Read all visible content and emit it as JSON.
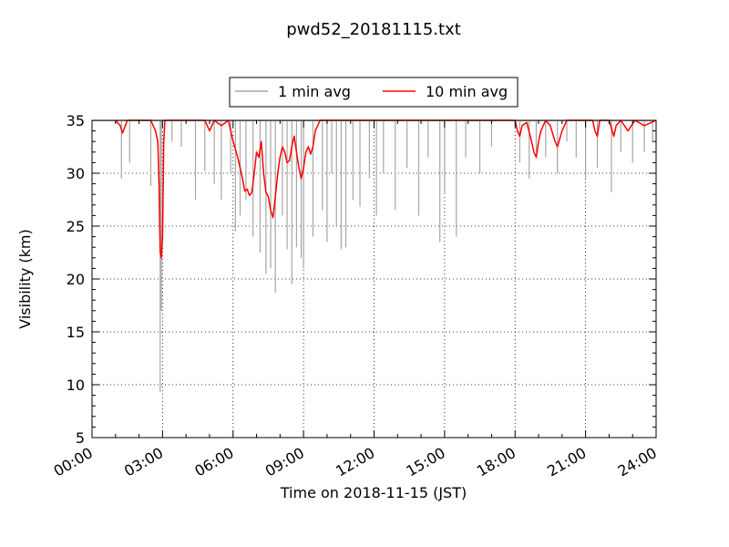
{
  "chart_data": {
    "type": "line",
    "title": "pwd52_20181115.txt",
    "xlabel": "Time on 2018-11-15 (JST)",
    "ylabel": "Visibility (km)",
    "xlim": [
      0,
      24
    ],
    "ylim": [
      5,
      35
    ],
    "x_tick_labels": [
      "00:00",
      "03:00",
      "06:00",
      "09:00",
      "12:00",
      "15:00",
      "18:00",
      "21:00",
      "24:00"
    ],
    "y_tick_labels": [
      "5",
      "10",
      "15",
      "20",
      "25",
      "30",
      "35"
    ],
    "grid": true,
    "legend_position": "top-center, above plot",
    "series": [
      {
        "name": "1 min avg",
        "color": "#a6a6a6",
        "x_unit": "hours",
        "dips": [
          [
            1.25,
            29.5
          ],
          [
            1.6,
            31
          ],
          [
            2.5,
            28.8
          ],
          [
            2.9,
            9.3
          ],
          [
            2.95,
            17
          ],
          [
            3.4,
            33
          ],
          [
            3.8,
            32.5
          ],
          [
            4.4,
            27.5
          ],
          [
            4.8,
            30.2
          ],
          [
            5.2,
            29
          ],
          [
            5.5,
            27.5
          ],
          [
            5.9,
            30
          ],
          [
            6.1,
            24.5
          ],
          [
            6.3,
            26
          ],
          [
            6.55,
            27.5
          ],
          [
            6.85,
            24
          ],
          [
            7.15,
            22.5
          ],
          [
            7.4,
            20.5
          ],
          [
            7.6,
            21
          ],
          [
            7.8,
            18.7
          ],
          [
            8.1,
            26
          ],
          [
            8.3,
            22.8
          ],
          [
            8.5,
            19.5
          ],
          [
            8.7,
            23
          ],
          [
            8.9,
            22
          ],
          [
            9.0,
            21
          ],
          [
            9.4,
            24
          ],
          [
            9.8,
            26.5
          ],
          [
            10.0,
            23.5
          ],
          [
            10.2,
            30
          ],
          [
            10.4,
            25
          ],
          [
            10.6,
            22.8
          ],
          [
            10.8,
            23
          ],
          [
            11.1,
            27.5
          ],
          [
            11.4,
            26.8
          ],
          [
            11.8,
            29.5
          ],
          [
            12.1,
            26
          ],
          [
            12.4,
            30
          ],
          [
            12.9,
            26.5
          ],
          [
            13.4,
            30.5
          ],
          [
            13.9,
            26
          ],
          [
            14.3,
            31.5
          ],
          [
            14.8,
            23.5
          ],
          [
            15.0,
            28
          ],
          [
            15.5,
            24
          ],
          [
            15.9,
            31.5
          ],
          [
            16.5,
            30
          ],
          [
            17.0,
            32.5
          ],
          [
            18.2,
            31
          ],
          [
            18.6,
            29.5
          ],
          [
            18.9,
            32
          ],
          [
            19.3,
            31.5
          ],
          [
            19.8,
            30
          ],
          [
            20.2,
            33
          ],
          [
            20.6,
            31.5
          ],
          [
            21.0,
            29.5
          ],
          [
            21.5,
            30.5
          ],
          [
            22.1,
            28.2
          ],
          [
            22.5,
            32
          ],
          [
            23.0,
            31
          ],
          [
            23.5,
            32
          ],
          [
            23.85,
            33
          ]
        ]
      },
      {
        "name": "10 min avg",
        "color": "#ff0000",
        "x_unit": "hours",
        "values": [
          [
            1.0,
            35
          ],
          [
            1.2,
            34.5
          ],
          [
            1.3,
            33.8
          ],
          [
            1.5,
            35
          ],
          [
            2.5,
            35
          ],
          [
            2.7,
            34
          ],
          [
            2.8,
            33
          ],
          [
            2.85,
            29
          ],
          [
            2.9,
            22.5
          ],
          [
            2.95,
            22
          ],
          [
            3.0,
            24
          ],
          [
            3.05,
            33
          ],
          [
            3.1,
            35
          ],
          [
            4.8,
            35
          ],
          [
            5.0,
            34
          ],
          [
            5.2,
            35
          ],
          [
            5.5,
            34.5
          ],
          [
            5.8,
            35
          ],
          [
            6.0,
            33
          ],
          [
            6.2,
            31.5
          ],
          [
            6.4,
            29.5
          ],
          [
            6.5,
            28.3
          ],
          [
            6.6,
            28.5
          ],
          [
            6.7,
            27.9
          ],
          [
            6.8,
            28.2
          ],
          [
            6.9,
            30
          ],
          [
            7.0,
            32
          ],
          [
            7.1,
            31.5
          ],
          [
            7.2,
            33
          ],
          [
            7.3,
            30
          ],
          [
            7.4,
            28.2
          ],
          [
            7.5,
            27.8
          ],
          [
            7.6,
            26.5
          ],
          [
            7.7,
            25.8
          ],
          [
            7.8,
            27.8
          ],
          [
            7.9,
            30
          ],
          [
            8.0,
            31.5
          ],
          [
            8.1,
            32.5
          ],
          [
            8.2,
            32
          ],
          [
            8.3,
            31
          ],
          [
            8.4,
            31.2
          ],
          [
            8.5,
            32.5
          ],
          [
            8.6,
            33.5
          ],
          [
            8.7,
            32
          ],
          [
            8.8,
            30.5
          ],
          [
            8.9,
            29.5
          ],
          [
            9.0,
            30.5
          ],
          [
            9.1,
            32
          ],
          [
            9.2,
            32.5
          ],
          [
            9.3,
            31.8
          ],
          [
            9.4,
            32.5
          ],
          [
            9.5,
            34
          ],
          [
            9.7,
            35
          ],
          [
            18.0,
            35
          ],
          [
            18.1,
            34
          ],
          [
            18.2,
            33.5
          ],
          [
            18.3,
            34.5
          ],
          [
            18.5,
            34.8
          ],
          [
            18.7,
            33
          ],
          [
            18.8,
            32
          ],
          [
            18.9,
            31.5
          ],
          [
            19.0,
            33
          ],
          [
            19.1,
            34
          ],
          [
            19.3,
            35
          ],
          [
            19.5,
            34.5
          ],
          [
            19.7,
            33
          ],
          [
            19.8,
            32.5
          ],
          [
            20.0,
            34
          ],
          [
            20.2,
            35
          ],
          [
            21.3,
            35
          ],
          [
            21.4,
            34
          ],
          [
            21.5,
            33.5
          ],
          [
            21.6,
            35
          ],
          [
            22.0,
            35
          ],
          [
            22.2,
            33.5
          ],
          [
            22.3,
            34.5
          ],
          [
            22.5,
            35
          ],
          [
            22.8,
            34
          ],
          [
            23.1,
            35
          ],
          [
            23.5,
            34.5
          ],
          [
            24.0,
            35
          ]
        ]
      }
    ]
  }
}
